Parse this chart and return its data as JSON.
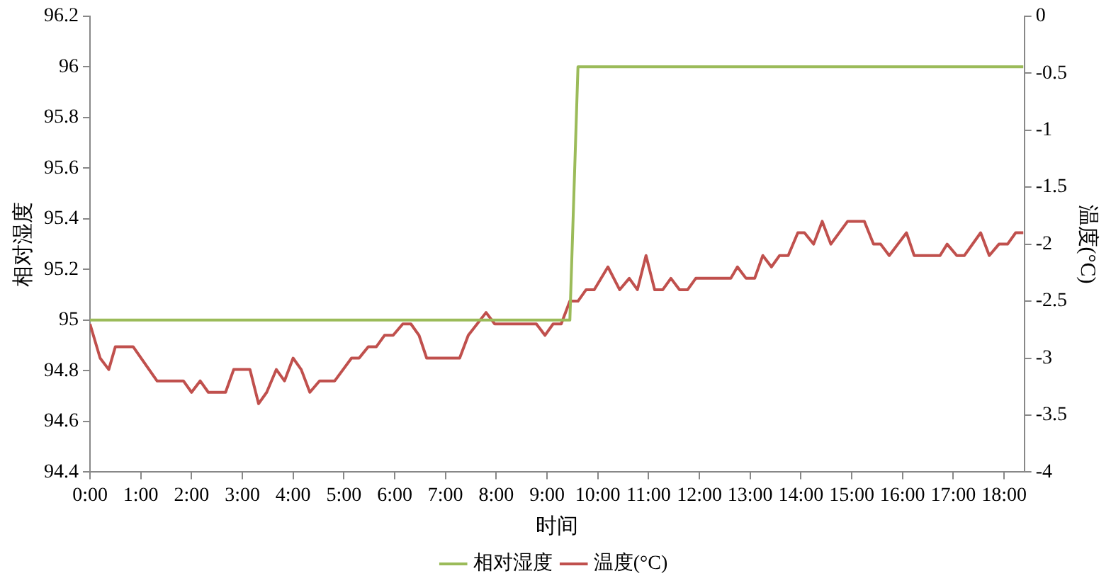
{
  "chart_data": {
    "type": "line",
    "xlabel": "时间",
    "ylabel": "相对湿度",
    "y2label": "温度(°C)",
    "legend": "bottom",
    "marker": "none",
    "xlim": [
      0,
      18.4
    ],
    "xticks": [
      {
        "value": 0,
        "label": "0:00"
      },
      {
        "value": 1,
        "label": "1:00"
      },
      {
        "value": 2,
        "label": "2:00"
      },
      {
        "value": 3,
        "label": "3:00"
      },
      {
        "value": 4,
        "label": "4:00"
      },
      {
        "value": 5,
        "label": "5:00"
      },
      {
        "value": 6,
        "label": "6:00"
      },
      {
        "value": 7,
        "label": "7:00"
      },
      {
        "value": 8,
        "label": "8:00"
      },
      {
        "value": 9,
        "label": "9:00"
      },
      {
        "value": 10,
        "label": "10:00"
      },
      {
        "value": 11,
        "label": "11:00"
      },
      {
        "value": 12,
        "label": "12:00"
      },
      {
        "value": 13,
        "label": "13:00"
      },
      {
        "value": 14,
        "label": "14:00"
      },
      {
        "value": 15,
        "label": "15:00"
      },
      {
        "value": 16,
        "label": "16:00"
      },
      {
        "value": 17,
        "label": "17:00"
      },
      {
        "value": 18,
        "label": "18:00"
      }
    ],
    "ylim": [
      94.4,
      96.2
    ],
    "yticks": [
      94.4,
      94.6,
      94.8,
      95,
      95.2,
      95.4,
      95.6,
      95.8,
      96,
      96.2
    ],
    "y2lim": [
      -4,
      0
    ],
    "y2ticks": [
      -4,
      -3.5,
      -3,
      -2.5,
      -2,
      -1.5,
      -1,
      -0.5,
      0
    ],
    "series": [
      {
        "name": "相对湿度",
        "color": "#9bbb59",
        "x": [
          0,
          9.45,
          9.61,
          18.38
        ],
        "values": [
          95,
          95,
          96,
          96
        ]
      },
      {
        "name": "温度(°C)",
        "color": "#c0504d",
        "axis": "y2",
        "x": [
          0,
          0.2,
          0.37,
          0.5,
          0.85,
          1.32,
          1.84,
          2.0,
          2.17,
          2.33,
          2.67,
          2.83,
          3.15,
          3.32,
          3.48,
          3.67,
          3.83,
          4.0,
          4.16,
          4.33,
          4.52,
          4.82,
          5.15,
          5.3,
          5.48,
          5.64,
          5.8,
          5.97,
          6.16,
          6.32,
          6.48,
          6.63,
          7.28,
          7.45,
          7.8,
          7.97,
          8.79,
          8.96,
          9.12,
          9.28,
          9.45,
          9.61,
          9.77,
          9.93,
          10.2,
          10.43,
          10.62,
          10.78,
          10.95,
          11.12,
          11.28,
          11.44,
          11.61,
          11.77,
          11.93,
          12.62,
          12.75,
          12.92,
          13.09,
          13.25,
          13.42,
          13.58,
          13.75,
          13.94,
          14.07,
          14.25,
          14.42,
          14.59,
          14.92,
          15.25,
          15.43,
          15.57,
          15.74,
          16.08,
          16.23,
          16.74,
          16.88,
          17.07,
          17.22,
          17.54,
          17.71,
          17.9,
          18.07,
          18.23,
          18.38
        ],
        "values": [
          -2.7,
          -3.0,
          -3.1,
          -2.9,
          -2.9,
          -3.2,
          -3.2,
          -3.3,
          -3.2,
          -3.3,
          -3.3,
          -3.1,
          -3.1,
          -3.4,
          -3.3,
          -3.1,
          -3.2,
          -3.0,
          -3.1,
          -3.3,
          -3.2,
          -3.2,
          -3.0,
          -3.0,
          -2.9,
          -2.9,
          -2.8,
          -2.8,
          -2.7,
          -2.7,
          -2.8,
          -3.0,
          -3.0,
          -2.8,
          -2.6,
          -2.7,
          -2.7,
          -2.8,
          -2.7,
          -2.7,
          -2.5,
          -2.5,
          -2.4,
          -2.4,
          -2.2,
          -2.4,
          -2.3,
          -2.4,
          -2.1,
          -2.4,
          -2.4,
          -2.3,
          -2.4,
          -2.4,
          -2.3,
          -2.3,
          -2.2,
          -2.3,
          -2.3,
          -2.1,
          -2.2,
          -2.1,
          -2.1,
          -1.9,
          -1.9,
          -2.0,
          -1.8,
          -2.0,
          -1.8,
          -1.8,
          -2.0,
          -2.0,
          -2.1,
          -1.9,
          -2.1,
          -2.1,
          -2.0,
          -2.1,
          -2.1,
          -1.9,
          -2.1,
          -2.0,
          -2.0,
          -1.9,
          -1.9
        ]
      }
    ]
  }
}
